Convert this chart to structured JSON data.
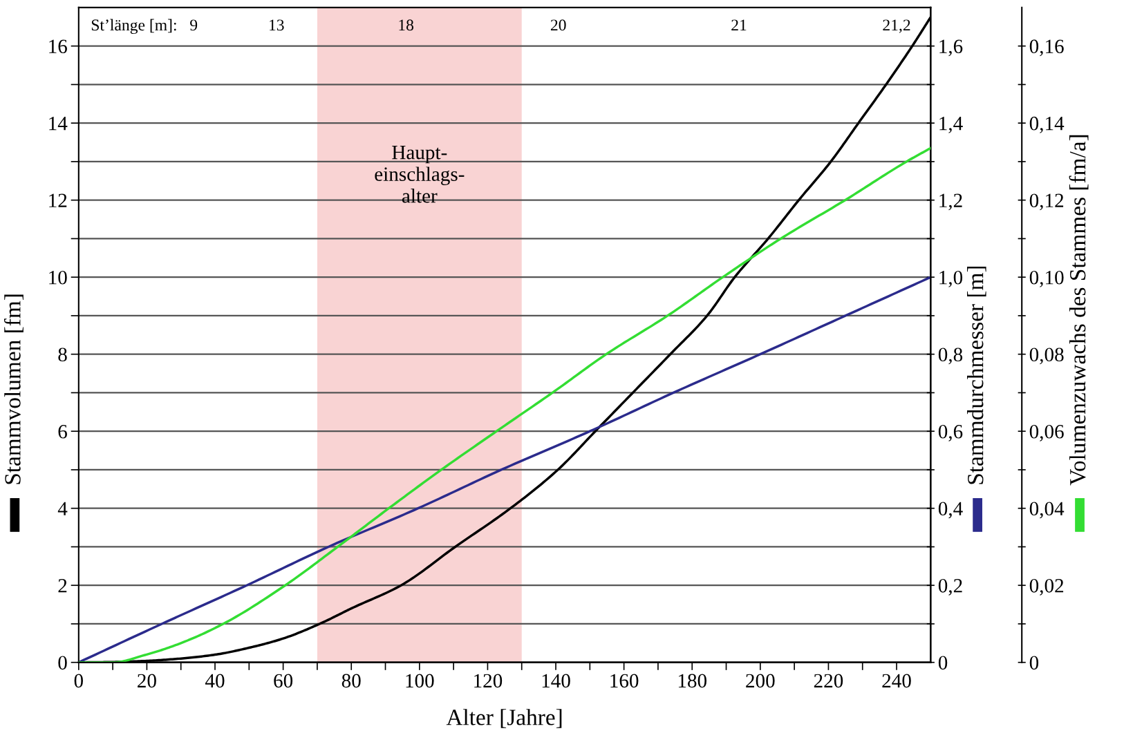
{
  "chart_data": {
    "type": "line",
    "xlabel": "Alter [Jahre]",
    "ylabel": "Stammvolumen [fm]",
    "y2label": "Stammdurchmesser [m]",
    "y3label": "Volumenzuwachs des Stammes [fm/a]",
    "xlim": [
      0,
      250
    ],
    "xticks": [
      0,
      {
        "value": 10,
        "label": null
      },
      20,
      {
        "value": 30,
        "label": null
      },
      40,
      {
        "value": 50,
        "label": null
      },
      60,
      {
        "value": 70,
        "label": null
      },
      80,
      {
        "value": 90,
        "label": null
      },
      100,
      {
        "value": 110,
        "label": null
      },
      120,
      {
        "value": 130,
        "label": null
      },
      140,
      {
        "value": 150,
        "label": null
      },
      160,
      {
        "value": 170,
        "label": null
      },
      180,
      {
        "value": 190,
        "label": null
      },
      200,
      {
        "value": 210,
        "label": null
      },
      220,
      {
        "value": 230,
        "label": null
      },
      240
    ],
    "ylim": [
      0,
      17
    ],
    "yticks": [
      0,
      {
        "value": 1,
        "label": null
      },
      2,
      {
        "value": 3,
        "label": null
      },
      4,
      {
        "value": 5,
        "label": null
      },
      6,
      {
        "value": 7,
        "label": null
      },
      8,
      {
        "value": 9,
        "label": null
      },
      10,
      {
        "value": 11,
        "label": null
      },
      12,
      {
        "value": 13,
        "label": null
      },
      14,
      {
        "value": 15,
        "label": null
      },
      16
    ],
    "y2lim": [
      0,
      1.7
    ],
    "y2ticks": [
      0,
      {
        "value": 0.1,
        "label": null
      },
      {
        "value": 0.2,
        "label": "0,2"
      },
      {
        "value": 0.3,
        "label": null
      },
      {
        "value": 0.4,
        "label": "0,4"
      },
      {
        "value": 0.5,
        "label": null
      },
      {
        "value": 0.6,
        "label": "0,6"
      },
      {
        "value": 0.7,
        "label": null
      },
      {
        "value": 0.8,
        "label": "0,8"
      },
      {
        "value": 0.9,
        "label": null
      },
      {
        "value": 1.0,
        "label": "1,0"
      },
      {
        "value": 1.1,
        "label": null
      },
      {
        "value": 1.2,
        "label": "1,2"
      },
      {
        "value": 1.3,
        "label": null
      },
      {
        "value": 1.4,
        "label": "1,4"
      },
      {
        "value": 1.5,
        "label": null
      },
      {
        "value": 1.6,
        "label": "1,6"
      }
    ],
    "y3lim": [
      0,
      0.17
    ],
    "y3ticks": [
      0,
      {
        "value": 0.01,
        "label": null
      },
      {
        "value": 0.02,
        "label": "0,02"
      },
      {
        "value": 0.03,
        "label": null
      },
      {
        "value": 0.04,
        "label": "0,04"
      },
      {
        "value": 0.05,
        "label": null
      },
      {
        "value": 0.06,
        "label": "0,06"
      },
      {
        "value": 0.07,
        "label": null
      },
      {
        "value": 0.08,
        "label": "0,08"
      },
      {
        "value": 0.09,
        "label": null
      },
      {
        "value": 0.1,
        "label": "0,10"
      },
      {
        "value": 0.11,
        "label": null
      },
      {
        "value": 0.12,
        "label": "0,12"
      },
      {
        "value": 0.13,
        "label": null
      },
      {
        "value": 0.14,
        "label": "0,14"
      },
      {
        "value": 0.15,
        "label": null
      },
      {
        "value": 0.16,
        "label": "0,16"
      }
    ],
    "grid": "y",
    "legend": false,
    "marker": "none",
    "line_style": "solid",
    "series": [
      {
        "color": "#000000",
        "axis": "y",
        "x": [
          0,
          10,
          20,
          30,
          40,
          50,
          60,
          70.7,
          80,
          94.6,
          110.5,
          126.7,
          140.6,
          151.6,
          162.6,
          173.6,
          184.4,
          192.5,
          202.3,
          211.3,
          220.7,
          228.8,
          236.9,
          244.6,
          250
        ],
        "values": [
          0,
          0.01,
          0.04,
          0.1,
          0.2,
          0.38,
          0.62,
          1.0,
          1.4,
          2.0,
          3.0,
          4.0,
          5.0,
          6.0,
          7.0,
          8.0,
          9.0,
          10.0,
          11.0,
          12.0,
          13.0,
          14.0,
          15.0,
          16.0,
          16.75
        ]
      },
      {
        "color": "#2b2b8c",
        "axis": "y2",
        "x": [
          0,
          24.4,
          49.3,
          73.3,
          99.6,
          124,
          150,
          174.5,
          200,
          225,
          250
        ],
        "values": [
          0,
          0.1,
          0.2,
          0.3,
          0.4,
          0.5,
          0.6,
          0.7,
          0.8,
          0.9,
          1.0
        ]
      },
      {
        "color": "#33dd33",
        "axis": "y3",
        "x": [
          0,
          10,
          19.8,
          30,
          42.4,
          60.6,
          76,
          91,
          106.4,
          122.6,
          139,
          154.8,
          172.8,
          189,
          206,
          224.9,
          242.9,
          250
        ],
        "values": [
          0,
          0.0,
          0.002,
          0.005,
          0.01,
          0.02,
          0.03,
          0.04,
          0.05,
          0.06,
          0.07,
          0.08,
          0.09,
          0.1,
          0.11,
          0.12,
          0.13,
          0.1335
        ]
      }
    ],
    "bands": [
      {
        "axis": "x",
        "from": 70,
        "to": 130,
        "label": "Haupt-\neinschlags-\nalter",
        "color": "#f9d3d3"
      }
    ],
    "annotations": [
      "St’länge [m]:",
      "9",
      "13",
      "18",
      "20",
      "21",
      "21,2"
    ]
  }
}
